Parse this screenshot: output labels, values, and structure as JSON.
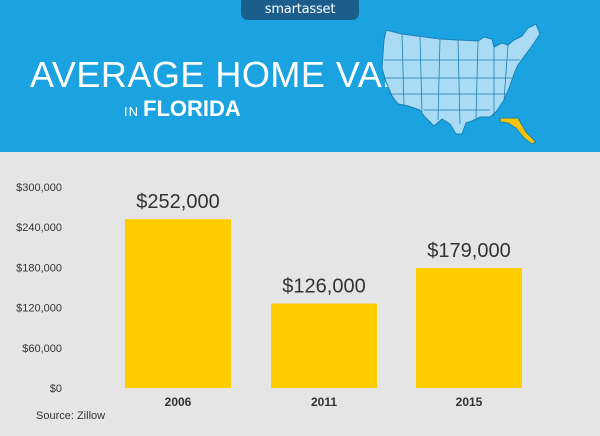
{
  "brand": {
    "logo": "smartasset"
  },
  "header": {
    "title": "AVERAGE HOME VALUE",
    "subtitle_prefix": "IN",
    "subtitle_state": "FLORIDA"
  },
  "map": {
    "icon": "usa-map-florida-highlighted",
    "fill": "#a9dcf4",
    "highlight": "#f5c400"
  },
  "colors": {
    "header_bg": "#1aa3e0",
    "bar": "#ffcc00",
    "background": "#e5e5e5"
  },
  "chart_data": {
    "type": "bar",
    "categories": [
      "2006",
      "2011",
      "2015"
    ],
    "values": [
      252000,
      126000,
      179000
    ],
    "data_labels": [
      "$252,000",
      "$126,000",
      "$179,000"
    ],
    "yticks": [
      "$0",
      "$60,000",
      "$120,000",
      "$180,000",
      "$240,000",
      "$300,000"
    ],
    "ylim": [
      0,
      300000
    ],
    "grid": false
  },
  "source": "Source: Zillow"
}
